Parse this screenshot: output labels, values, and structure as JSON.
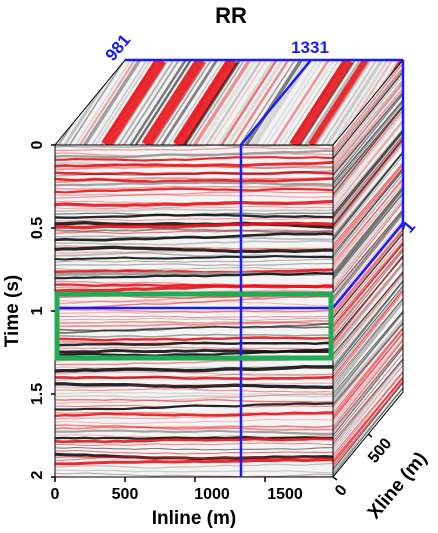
{
  "title": "RR",
  "cube_labels": {
    "top_left_marker": "981",
    "top_right_marker": "1331",
    "side_marker": "1"
  },
  "axes": {
    "time": {
      "label": "Time (s)",
      "ticks": [
        "0",
        "0.5",
        "1",
        "1.5",
        "2"
      ]
    },
    "inline": {
      "label": "Inline (m)",
      "ticks": [
        "0",
        "500",
        "1000",
        "1500"
      ]
    },
    "xline": {
      "label": "Xline (m)",
      "ticks": [
        "0",
        "500"
      ]
    }
  },
  "colors": {
    "marker_lines": "#1a1aff",
    "highlight_box": "#22aa55",
    "positive_amplitude": "#e8141a",
    "negative_amplitude": "#111111",
    "background": "#ffffff"
  }
}
